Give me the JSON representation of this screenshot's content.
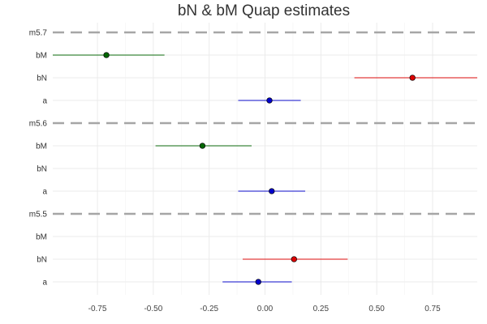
{
  "chart_data": {
    "type": "scatter",
    "title": "bN & bM Quap estimates",
    "xlabel": "",
    "ylabel": "",
    "xlim": [
      -0.95,
      0.95
    ],
    "x_ticks": [
      -0.75,
      -0.5,
      -0.25,
      0.0,
      0.25,
      0.5,
      0.75
    ],
    "x_tick_labels": [
      "-0.75",
      "-0.50",
      "-0.25",
      "0.00",
      "0.25",
      "0.50",
      "0.75"
    ],
    "grid": true,
    "colors": {
      "a": "#0000cc",
      "bN": "#dd0000",
      "bM": "#006600"
    },
    "rows": [
      {
        "label": "m5.7",
        "separator": true
      },
      {
        "label": "bM",
        "param": "bM",
        "mean": -0.71,
        "lower": -0.95,
        "upper": -0.45
      },
      {
        "label": "bN",
        "param": "bN",
        "mean": 0.66,
        "lower": 0.4,
        "upper": 0.95
      },
      {
        "label": "a",
        "param": "a",
        "mean": 0.02,
        "lower": -0.12,
        "upper": 0.16
      },
      {
        "label": "m5.6",
        "separator": true
      },
      {
        "label": "bM",
        "param": "bM",
        "mean": -0.28,
        "lower": -0.49,
        "upper": -0.06
      },
      {
        "label": "bN",
        "param": "bN"
      },
      {
        "label": "a",
        "param": "a",
        "mean": 0.03,
        "lower": -0.12,
        "upper": 0.18
      },
      {
        "label": "m5.5",
        "separator": true
      },
      {
        "label": "bM",
        "param": "bM"
      },
      {
        "label": "bN",
        "param": "bN",
        "mean": 0.13,
        "lower": -0.1,
        "upper": 0.37
      },
      {
        "label": "a",
        "param": "a",
        "mean": -0.03,
        "lower": -0.19,
        "upper": 0.12
      }
    ]
  }
}
